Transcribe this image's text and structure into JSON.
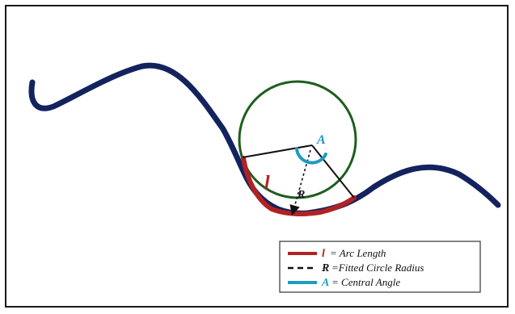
{
  "labels": {
    "center": "A",
    "arc": "l",
    "radius": "R"
  },
  "legend": {
    "items": [
      {
        "symbol": "l",
        "text": "= Arc Length",
        "style": "solid",
        "color": "#b22222"
      },
      {
        "symbol": "R",
        "text": "=Fitted Circle Radius",
        "style": "dashed",
        "color": "#111111"
      },
      {
        "symbol": "A",
        "text": "= Central Angle",
        "style": "solid",
        "color": "#1f9bbf"
      }
    ]
  },
  "colors": {
    "curve": "#13235e",
    "circle": "#1e5e1e",
    "arc": "#b22222",
    "angle": "#1f9bbf",
    "radius_lines": "#111111",
    "frame": "#1a1a1a"
  }
}
